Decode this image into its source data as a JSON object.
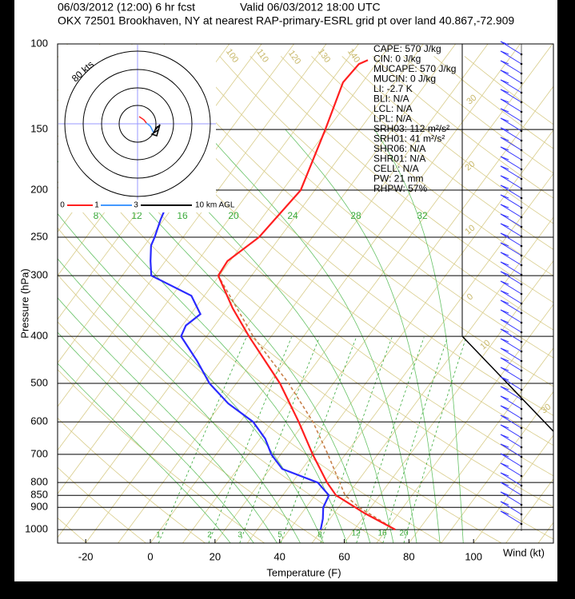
{
  "header": {
    "line1_left": "06/03/2012 (12:00) 6 hr fcst",
    "line1_right": "Valid 06/03/2012 18:00 UTC",
    "line2": "OKX 72501 Brookhaven, NY at nearest RAP-primary-ESRL grid pt over land 40.867,-72.909"
  },
  "chart_data": {
    "type": "skewt",
    "xlabel": "Temperature (F)",
    "ylabel": "Pressure (hPa)",
    "xlim": [
      -28.7,
      124.7
    ],
    "xticks": [
      -20,
      0,
      20,
      40,
      60,
      80,
      100
    ],
    "ylim": [
      1066,
      100
    ],
    "yticks": [
      100,
      150,
      200,
      250,
      300,
      400,
      500,
      600,
      700,
      800,
      850,
      900,
      1000
    ],
    "log_y": true,
    "temperature": {
      "color": "#ff2020",
      "pressure": [
        1000,
        925,
        850,
        800,
        700,
        600,
        500,
        400,
        350,
        300,
        280,
        250,
        200,
        150,
        120,
        110,
        108
      ],
      "values": [
        72.7,
        59.4,
        46.5,
        40.8,
        29.9,
        18.1,
        3.5,
        -16.9,
        -28.4,
        -40.3,
        -40.8,
        -36.5,
        -34.4,
        -40.7,
        -46,
        -45.3,
        -43.4
      ]
    },
    "dewpoint": {
      "color": "#2a2aff",
      "pressure": [
        1000,
        950,
        900,
        850,
        800,
        750,
        700,
        650,
        600,
        550,
        500,
        450,
        400,
        380,
        360,
        330,
        300,
        280,
        260,
        250,
        230,
        220
      ],
      "values": [
        49.6,
        47.8,
        45.3,
        44.3,
        37.9,
        23.8,
        17.1,
        11.6,
        4,
        -7.9,
        -18.3,
        -27.2,
        -37.9,
        -38.9,
        -37,
        -44,
        -61,
        -64.6,
        -68,
        -68.8,
        -71,
        -71.9
      ]
    },
    "parcel": {
      "color": "#c8804a",
      "pressure": [
        1000,
        900,
        850,
        700,
        600,
        500,
        400,
        300
      ],
      "values": [
        72.7,
        56.4,
        49.3,
        34.6,
        22.5,
        6.2,
        -15.6,
        -40.3
      ]
    },
    "stats": [
      "CAPE: 570 J/kg",
      "CIN: 0 J/kg",
      "MUCAPE: 570 J/kg",
      "MUCIN: 0 J/kg",
      "LI: -2.7 K",
      "BLI: N/A",
      "LCL: N/A",
      "LPL: N/A",
      "SRH03: 112 m²/s²",
      "SRH01: 41 m²/s²",
      "SHR06: N/A",
      "SHR01: N/A",
      "CELL: N/A",
      "PW: 21 mm",
      "RHPW: 57%"
    ],
    "wind_label": "Wind (kt)",
    "hodograph": {
      "ring_label": "80 kts",
      "legend": [
        "0",
        "1",
        "3",
        "10 km AGL"
      ]
    },
    "moist_adiabat_labels": [
      8,
      12,
      16,
      20,
      24,
      28,
      32
    ],
    "mixing_ratio_labels": [
      1,
      2,
      3,
      5,
      8,
      12,
      16,
      20
    ],
    "isotherm_labels": [
      100,
      110,
      120,
      130,
      140,
      30,
      20,
      10,
      0,
      10,
      30
    ]
  }
}
